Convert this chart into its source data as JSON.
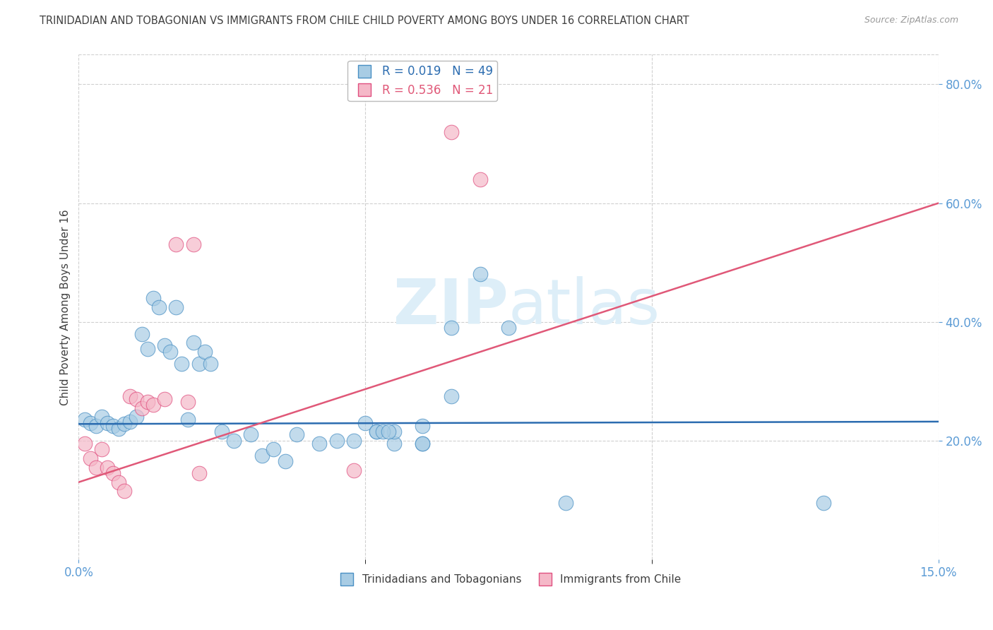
{
  "title": "TRINIDADIAN AND TOBAGONIAN VS IMMIGRANTS FROM CHILE CHILD POVERTY AMONG BOYS UNDER 16 CORRELATION CHART",
  "source": "Source: ZipAtlas.com",
  "ylabel": "Child Poverty Among Boys Under 16",
  "r_blue": 0.019,
  "n_blue": 49,
  "r_pink": 0.536,
  "n_pink": 21,
  "legend_blue": "Trinidadians and Tobagonians",
  "legend_pink": "Immigrants from Chile",
  "xlim": [
    0.0,
    0.15
  ],
  "ylim": [
    0.0,
    0.85
  ],
  "yticks_right": [
    0.2,
    0.4,
    0.6,
    0.8
  ],
  "xtick_positions": [
    0.0,
    0.15
  ],
  "xtick_minor": [
    0.05,
    0.1
  ],
  "blue_color": "#a8cce4",
  "pink_color": "#f5b8c8",
  "blue_edge_color": "#4a90c4",
  "pink_edge_color": "#e05080",
  "blue_line_color": "#2b6cb0",
  "pink_line_color": "#e05878",
  "title_color": "#404040",
  "axis_color": "#5b9bd5",
  "watermark_color": "#ddeef8",
  "grid_color": "#d0d0d0",
  "blue_line_y0": 0.228,
  "blue_line_y1": 0.232,
  "pink_line_y0": 0.13,
  "pink_line_y1": 0.6,
  "blue_x": [
    0.001,
    0.002,
    0.003,
    0.004,
    0.005,
    0.006,
    0.007,
    0.008,
    0.009,
    0.01,
    0.011,
    0.012,
    0.013,
    0.014,
    0.015,
    0.016,
    0.017,
    0.018,
    0.019,
    0.02,
    0.021,
    0.022,
    0.023,
    0.025,
    0.027,
    0.03,
    0.032,
    0.034,
    0.036,
    0.038,
    0.042,
    0.045,
    0.048,
    0.052,
    0.055,
    0.06,
    0.065,
    0.07,
    0.075,
    0.05,
    0.055,
    0.06,
    0.065,
    0.085,
    0.13,
    0.052,
    0.053,
    0.054,
    0.06
  ],
  "blue_y": [
    0.235,
    0.23,
    0.225,
    0.24,
    0.23,
    0.225,
    0.22,
    0.228,
    0.232,
    0.24,
    0.38,
    0.355,
    0.44,
    0.425,
    0.36,
    0.35,
    0.425,
    0.33,
    0.235,
    0.365,
    0.33,
    0.35,
    0.33,
    0.215,
    0.2,
    0.21,
    0.175,
    0.185,
    0.165,
    0.21,
    0.195,
    0.2,
    0.2,
    0.215,
    0.195,
    0.195,
    0.275,
    0.48,
    0.39,
    0.23,
    0.215,
    0.195,
    0.39,
    0.095,
    0.095,
    0.215,
    0.215,
    0.215,
    0.225
  ],
  "pink_x": [
    0.001,
    0.002,
    0.003,
    0.004,
    0.005,
    0.006,
    0.007,
    0.008,
    0.009,
    0.01,
    0.011,
    0.012,
    0.013,
    0.015,
    0.017,
    0.019,
    0.02,
    0.021,
    0.048,
    0.065,
    0.07
  ],
  "pink_y": [
    0.195,
    0.17,
    0.155,
    0.185,
    0.155,
    0.145,
    0.13,
    0.115,
    0.275,
    0.27,
    0.255,
    0.265,
    0.26,
    0.27,
    0.53,
    0.265,
    0.53,
    0.145,
    0.15,
    0.72,
    0.64
  ]
}
